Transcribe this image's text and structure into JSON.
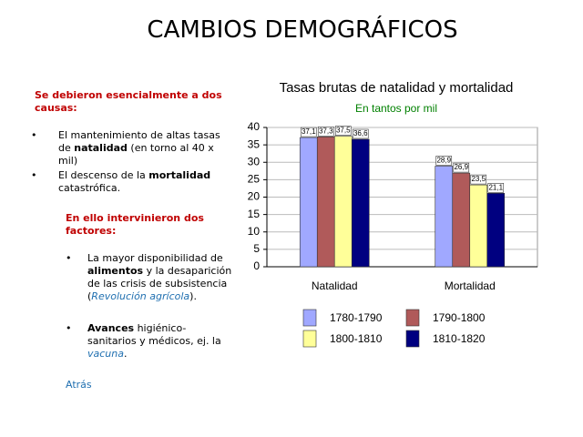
{
  "header": {
    "title": "CAMBIOS DEMOGRÁFICOS"
  },
  "text": {
    "causes_heading": "Se debieron esencialmente a dos causas:",
    "causes": [
      [
        "El mantenimiento de altas tasas de ",
        "natalidad",
        " (en torno al 40 x mil)"
      ],
      [
        "El descenso de la ",
        "mortalidad",
        " catastrófica."
      ]
    ],
    "factors_heading": "En ello intervinieron dos factores:",
    "factors": [
      [
        "La mayor disponibilidad de ",
        "alimentos",
        " y la desaparición de las crisis de subsistencia (",
        "Revolución agrícola",
        ")."
      ],
      [
        "Avances",
        " higiénico-sanitarios y médicos, ej. la ",
        "vacuna",
        "."
      ]
    ],
    "link": "Atrás"
  },
  "chart_data": {
    "type": "bar",
    "title": "Tasas brutas de natalidad y mortalidad",
    "subtitle": "En tantos por mil",
    "categories": [
      "Natalidad",
      "Mortalidad"
    ],
    "series": [
      {
        "name": "1780-1790",
        "color": "#a0a8ff",
        "values": [
          37.1,
          28.9
        ],
        "value_labels": [
          "37,1",
          "28,9"
        ]
      },
      {
        "name": "1790-1800",
        "color": "#b05a5a",
        "values": [
          37.3,
          26.9
        ],
        "value_labels": [
          "37,3",
          "26,9"
        ]
      },
      {
        "name": "1800-1810",
        "color": "#ffff99",
        "values": [
          37.5,
          23.5
        ],
        "value_labels": [
          "37,5",
          "23,5"
        ]
      },
      {
        "name": "1810-1820",
        "color": "#000080",
        "values": [
          36.6,
          21.1
        ],
        "value_labels": [
          "36,6",
          "21,1"
        ]
      }
    ],
    "ylim": [
      0,
      40
    ],
    "yticks": [
      0,
      5,
      10,
      15,
      20,
      25,
      30,
      35,
      40
    ],
    "grid": true
  }
}
